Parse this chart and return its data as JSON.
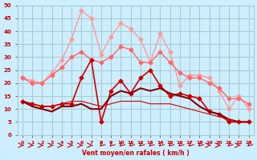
{
  "x": [
    0,
    1,
    2,
    3,
    4,
    5,
    6,
    7,
    8,
    9,
    10,
    11,
    12,
    13,
    14,
    15,
    16,
    17,
    18,
    19,
    20,
    21,
    22,
    23
  ],
  "line1": [
    13,
    12,
    11,
    11,
    12,
    12,
    22,
    29,
    5,
    17,
    21,
    16,
    22,
    25,
    19,
    15,
    16,
    15,
    14,
    9,
    8,
    5,
    5,
    5
  ],
  "line2": [
    13,
    11,
    10,
    9,
    11,
    11,
    12,
    10,
    10,
    15,
    17,
    16,
    18,
    17,
    18,
    16,
    15,
    14,
    11,
    9,
    8,
    6,
    5,
    5
  ],
  "line3": [
    22,
    21,
    20,
    24,
    29,
    37,
    48,
    45,
    31,
    38,
    43,
    41,
    37,
    28,
    39,
    32,
    19,
    23,
    23,
    22,
    17,
    10,
    15,
    10
  ],
  "line4": [
    22,
    20,
    20,
    23,
    26,
    30,
    32,
    29,
    28,
    30,
    34,
    33,
    28,
    28,
    32,
    28,
    24,
    22,
    22,
    20,
    18,
    14,
    14,
    12
  ],
  "line5": [
    13,
    12,
    11,
    11,
    12,
    13,
    13,
    12,
    11,
    12,
    13,
    13,
    13,
    12,
    12,
    12,
    11,
    10,
    9,
    8,
    7,
    6,
    5,
    5
  ],
  "arrows": [
    0,
    0,
    0,
    0,
    0,
    0,
    0,
    0,
    1,
    1,
    1,
    1,
    1,
    1,
    1,
    1,
    1,
    1,
    1,
    0,
    0,
    1,
    0,
    1
  ],
  "colors": {
    "line1": "#cc0000",
    "line2": "#880000",
    "line3": "#ff9999",
    "line4": "#ff6666",
    "line5": "#cc0000"
  },
  "bg_color": "#cceeff",
  "grid_color": "#aacccc",
  "text_color": "#cc0000",
  "xlabel": "Vent moyen/en rafales ( km/h )",
  "ylim": [
    0,
    50
  ],
  "xlim": [
    0,
    23
  ],
  "yticks": [
    0,
    5,
    10,
    15,
    20,
    25,
    30,
    35,
    40,
    45,
    50
  ]
}
